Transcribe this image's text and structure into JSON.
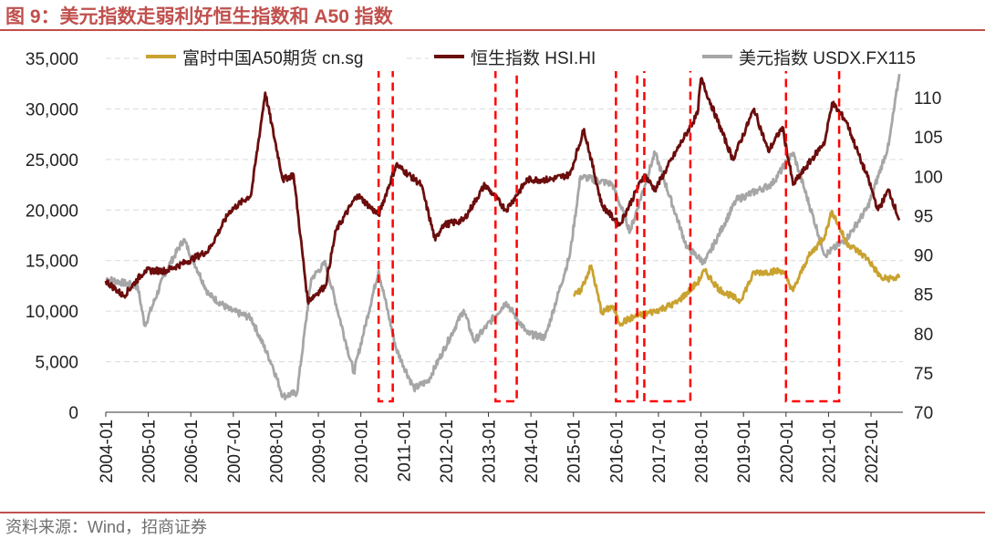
{
  "figure": {
    "title": "图 9：美元指数走弱利好恒生指数和 A50 指数",
    "source": "资料来源：Wind，招商证券"
  },
  "chart_data": {
    "type": "line",
    "x_tick_labels": [
      "2004-01",
      "2005-01",
      "2006-01",
      "2007-01",
      "2008-01",
      "2009-01",
      "2010-01",
      "2011-01",
      "2012-01",
      "2013-01",
      "2014-01",
      "2015-01",
      "2016-01",
      "2017-01",
      "2018-01",
      "2019-01",
      "2020-01",
      "2021-01",
      "2022-01"
    ],
    "y_left": {
      "range": [
        0,
        35000
      ],
      "ticks": [
        0,
        5000,
        10000,
        15000,
        20000,
        25000,
        30000,
        35000
      ],
      "tick_labels": [
        "0",
        "5,000",
        "10,000",
        "15,000",
        "20,000",
        "25,000",
        "30,000",
        "35,000"
      ],
      "grid": true
    },
    "y_right": {
      "range": [
        70,
        115
      ],
      "ticks": [
        70,
        75,
        80,
        85,
        90,
        95,
        100,
        105,
        110
      ],
      "tick_labels": [
        "70",
        "75",
        "80",
        "85",
        "90",
        "95",
        "100",
        "105",
        "110"
      ]
    },
    "legend_position": "top",
    "series": [
      {
        "name": "富时中国A50期货 cn.sg",
        "color": "#c9a230",
        "axis": "left",
        "points": [
          [
            "2015-01",
            11500
          ],
          [
            "2015-03",
            12000
          ],
          [
            "2015-06",
            14500
          ],
          [
            "2015-09",
            9800
          ],
          [
            "2015-12",
            10500
          ],
          [
            "2016-02",
            8800
          ],
          [
            "2016-06",
            9400
          ],
          [
            "2016-12",
            10000
          ],
          [
            "2017-06",
            10800
          ],
          [
            "2017-12",
            12800
          ],
          [
            "2018-02",
            14000
          ],
          [
            "2018-06",
            12200
          ],
          [
            "2018-12",
            11000
          ],
          [
            "2019-04",
            13800
          ],
          [
            "2019-12",
            14000
          ],
          [
            "2020-03",
            12000
          ],
          [
            "2020-07",
            15200
          ],
          [
            "2020-12",
            17500
          ],
          [
            "2021-02",
            19900
          ],
          [
            "2021-06",
            16800
          ],
          [
            "2021-12",
            15200
          ],
          [
            "2022-04",
            13200
          ],
          [
            "2022-09",
            13300
          ]
        ]
      },
      {
        "name": "恒生指数 HSI.HI",
        "color": "#6b0d0d",
        "axis": "left",
        "points": [
          [
            "2004-01",
            13000
          ],
          [
            "2004-06",
            11500
          ],
          [
            "2004-12",
            14000
          ],
          [
            "2005-06",
            14000
          ],
          [
            "2005-12",
            14900
          ],
          [
            "2006-06",
            16000
          ],
          [
            "2006-12",
            19900
          ],
          [
            "2007-06",
            21500
          ],
          [
            "2007-10",
            31600
          ],
          [
            "2008-03",
            23000
          ],
          [
            "2008-06",
            23500
          ],
          [
            "2008-10",
            11000
          ],
          [
            "2009-03",
            12500
          ],
          [
            "2009-06",
            18000
          ],
          [
            "2009-12",
            21500
          ],
          [
            "2010-06",
            19500
          ],
          [
            "2010-11",
            24500
          ],
          [
            "2011-06",
            22500
          ],
          [
            "2011-10",
            17000
          ],
          [
            "2011-12",
            18500
          ],
          [
            "2012-06",
            19000
          ],
          [
            "2012-12",
            22500
          ],
          [
            "2013-06",
            20000
          ],
          [
            "2013-12",
            23000
          ],
          [
            "2014-06",
            23000
          ],
          [
            "2014-12",
            23500
          ],
          [
            "2015-04",
            28000
          ],
          [
            "2015-09",
            20500
          ],
          [
            "2016-02",
            18500
          ],
          [
            "2016-09",
            23500
          ],
          [
            "2016-12",
            22000
          ],
          [
            "2017-06",
            25800
          ],
          [
            "2017-12",
            29500
          ],
          [
            "2018-01",
            33000
          ],
          [
            "2018-10",
            25000
          ],
          [
            "2019-04",
            30000
          ],
          [
            "2019-08",
            25800
          ],
          [
            "2019-12",
            28200
          ],
          [
            "2020-03",
            22500
          ],
          [
            "2020-12",
            26800
          ],
          [
            "2021-02",
            30600
          ],
          [
            "2021-06",
            28800
          ],
          [
            "2021-10",
            25000
          ],
          [
            "2021-12",
            23300
          ],
          [
            "2022-03",
            20000
          ],
          [
            "2022-06",
            22000
          ],
          [
            "2022-09",
            19000
          ]
        ]
      },
      {
        "name": "美元指数 USDX.FX115",
        "color": "#a6a6a6",
        "axis": "right",
        "points": [
          [
            "2004-01",
            87
          ],
          [
            "2004-10",
            86
          ],
          [
            "2004-12",
            81
          ],
          [
            "2005-06",
            88
          ],
          [
            "2005-11",
            92
          ],
          [
            "2006-06",
            85
          ],
          [
            "2006-12",
            83
          ],
          [
            "2007-06",
            82
          ],
          [
            "2007-12",
            76
          ],
          [
            "2008-03",
            72
          ],
          [
            "2008-07",
            72.5
          ],
          [
            "2008-11",
            87
          ],
          [
            "2009-03",
            89
          ],
          [
            "2009-11",
            75
          ],
          [
            "2010-06",
            88
          ],
          [
            "2010-11",
            78
          ],
          [
            "2011-04",
            73
          ],
          [
            "2011-08",
            74
          ],
          [
            "2012-06",
            83
          ],
          [
            "2012-09",
            79
          ],
          [
            "2013-06",
            84
          ],
          [
            "2013-12",
            80
          ],
          [
            "2014-05",
            79.5
          ],
          [
            "2014-12",
            90
          ],
          [
            "2015-03",
            100
          ],
          [
            "2015-12",
            99
          ],
          [
            "2016-05",
            93
          ],
          [
            "2016-12",
            103
          ],
          [
            "2017-09",
            91
          ],
          [
            "2018-02",
            89
          ],
          [
            "2018-11",
            97
          ],
          [
            "2019-09",
            99
          ],
          [
            "2020-03",
            103
          ],
          [
            "2020-12",
            90
          ],
          [
            "2021-06",
            92
          ],
          [
            "2021-12",
            96
          ],
          [
            "2022-06",
            104
          ],
          [
            "2022-09",
            113
          ]
        ]
      }
    ],
    "highlight_ranges": [
      [
        "2010-06",
        "2010-10"
      ],
      [
        "2013-03",
        "2013-09"
      ],
      [
        "2016-01",
        "2016-07"
      ],
      [
        "2016-09",
        "2017-10"
      ],
      [
        "2020-01",
        "2021-04"
      ]
    ]
  }
}
